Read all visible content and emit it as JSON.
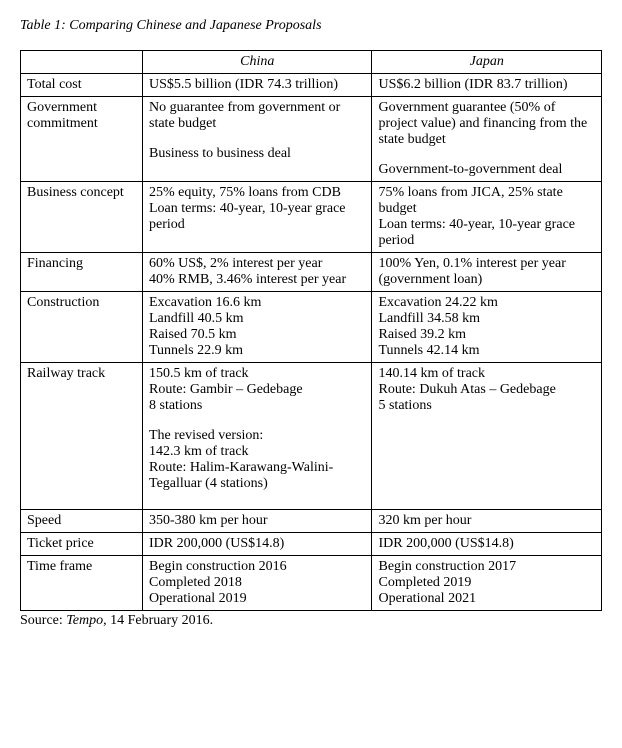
{
  "title": "Table 1: Comparing Chinese and Japanese Proposals",
  "headers": {
    "china": "China",
    "japan": "Japan"
  },
  "rows": {
    "total_cost": {
      "label": "Total cost",
      "china": [
        "US$5.5 billion (IDR 74.3 trillion)"
      ],
      "japan": [
        "US$6.2 billion (IDR 83.7 trillion)"
      ]
    },
    "gov_commit": {
      "label": "Government commitment",
      "china": [
        "No guarantee from government or state budget",
        "",
        "Business to business deal"
      ],
      "japan": [
        "Government guarantee (50% of project value) and financing from the state budget",
        "",
        "Government-to-government deal"
      ]
    },
    "business": {
      "label": "Business concept",
      "china": [
        "25% equity, 75% loans from CDB",
        "Loan terms: 40-year, 10-year grace period"
      ],
      "japan": [
        "75% loans from JICA, 25% state budget",
        "Loan terms: 40-year, 10-year grace period"
      ]
    },
    "financing": {
      "label": "Financing",
      "china": [
        "60% US$, 2% interest per year",
        "40% RMB, 3.46% interest per year"
      ],
      "japan": [
        "100% Yen, 0.1% interest per year (government loan)"
      ]
    },
    "construction": {
      "label": "Construction",
      "china": [
        "Excavation 16.6 km",
        "Landfill 40.5 km",
        "Raised 70.5 km",
        "Tunnels 22.9 km"
      ],
      "japan": [
        "Excavation 24.22 km",
        "Landfill 34.58 km",
        "Raised 39.2 km",
        "Tunnels 42.14 km"
      ]
    },
    "track": {
      "label": "Railway track",
      "china": [
        "150.5 km of track",
        "Route: Gambir – Gedebage",
        "8 stations",
        "",
        "The revised version:",
        "142.3 km of track",
        "Route: Halim-Karawang-Walini-Tegalluar (4 stations)",
        ""
      ],
      "japan": [
        "140.14 km of track",
        "Route: Dukuh Atas – Gedebage",
        "5 stations"
      ]
    },
    "speed": {
      "label": "Speed",
      "china": [
        "350-380 km per hour"
      ],
      "japan": [
        "320 km per hour"
      ]
    },
    "ticket": {
      "label": "Ticket price",
      "china": [
        "IDR 200,000 (US$14.8)"
      ],
      "japan": [
        "IDR 200,000 (US$14.8)"
      ]
    },
    "timeframe": {
      "label": "Time frame",
      "china": [
        "Begin construction 2016",
        "Completed 2018",
        "Operational 2019"
      ],
      "japan": [
        "Begin construction 2017",
        "Completed 2019",
        "Operational 2021"
      ]
    }
  },
  "source": {
    "label": "Source: ",
    "pub": "Tempo",
    "rest": ", 14 February 2016."
  },
  "colors": {
    "text": "#000000",
    "border": "#000000",
    "bg": "#ffffff"
  }
}
